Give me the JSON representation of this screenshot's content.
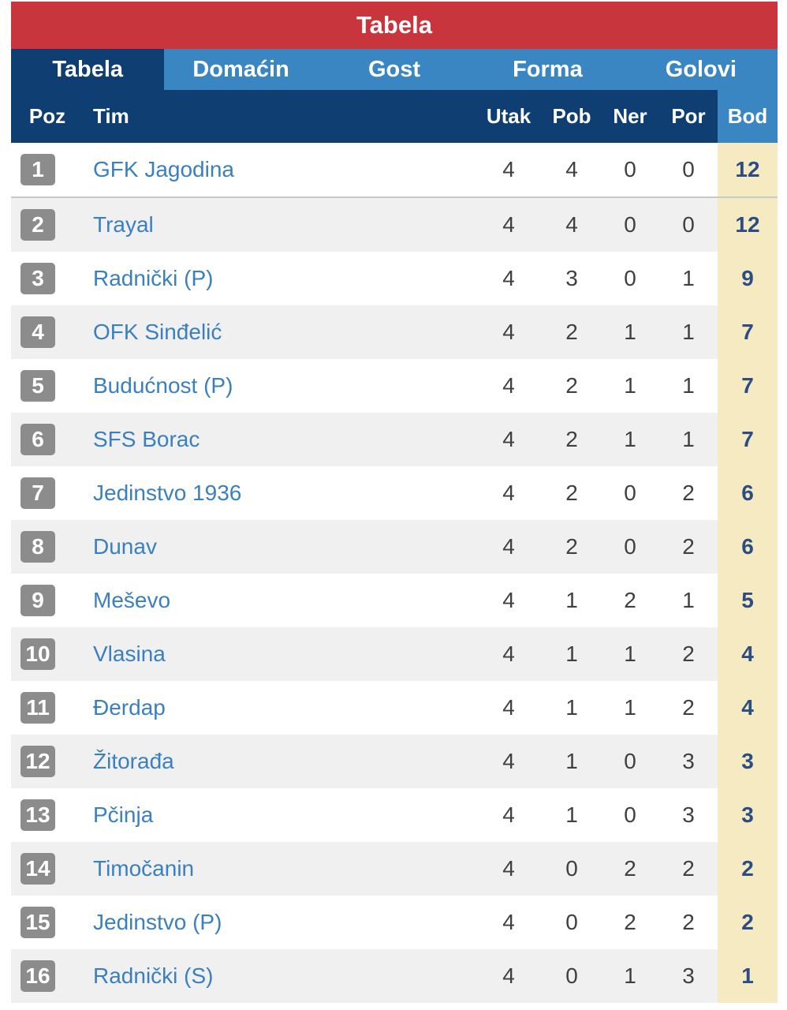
{
  "title": "Tabela",
  "tabs": [
    {
      "label": "Tabela",
      "active": true
    },
    {
      "label": "Domaćin",
      "active": false
    },
    {
      "label": "Gost",
      "active": false
    },
    {
      "label": "Forma",
      "active": false
    },
    {
      "label": "Golovi",
      "active": false
    }
  ],
  "columns": {
    "poz": "Poz",
    "tim": "Tim",
    "utak": "Utak",
    "pob": "Pob",
    "ner": "Ner",
    "por": "Por",
    "bod": "Bod"
  },
  "colors": {
    "title_bg": "#c8353d",
    "tab_bg": "#3a86c3",
    "header_bg": "#0f3e72",
    "badge_bg": "#8c8c8c",
    "points_bg": "#f6eac2",
    "team_link": "#3a80c0"
  },
  "rows": [
    {
      "pos": "1",
      "team": "GFK Jagodina",
      "utak": "4",
      "pob": "4",
      "ner": "0",
      "por": "0",
      "bod": "12"
    },
    {
      "pos": "2",
      "team": "Trayal",
      "utak": "4",
      "pob": "4",
      "ner": "0",
      "por": "0",
      "bod": "12"
    },
    {
      "pos": "3",
      "team": "Radnički (P)",
      "utak": "4",
      "pob": "3",
      "ner": "0",
      "por": "1",
      "bod": "9"
    },
    {
      "pos": "4",
      "team": "OFK Sinđelić",
      "utak": "4",
      "pob": "2",
      "ner": "1",
      "por": "1",
      "bod": "7"
    },
    {
      "pos": "5",
      "team": "Budućnost (P)",
      "utak": "4",
      "pob": "2",
      "ner": "1",
      "por": "1",
      "bod": "7"
    },
    {
      "pos": "6",
      "team": "SFS Borac",
      "utak": "4",
      "pob": "2",
      "ner": "1",
      "por": "1",
      "bod": "7"
    },
    {
      "pos": "7",
      "team": "Jedinstvo 1936",
      "utak": "4",
      "pob": "2",
      "ner": "0",
      "por": "2",
      "bod": "6"
    },
    {
      "pos": "8",
      "team": "Dunav",
      "utak": "4",
      "pob": "2",
      "ner": "0",
      "por": "2",
      "bod": "6"
    },
    {
      "pos": "9",
      "team": "Meševo",
      "utak": "4",
      "pob": "1",
      "ner": "2",
      "por": "1",
      "bod": "5"
    },
    {
      "pos": "10",
      "team": "Vlasina",
      "utak": "4",
      "pob": "1",
      "ner": "1",
      "por": "2",
      "bod": "4"
    },
    {
      "pos": "11",
      "team": "Đerdap",
      "utak": "4",
      "pob": "1",
      "ner": "1",
      "por": "2",
      "bod": "4"
    },
    {
      "pos": "12",
      "team": "Žitorađa",
      "utak": "4",
      "pob": "1",
      "ner": "0",
      "por": "3",
      "bod": "3"
    },
    {
      "pos": "13",
      "team": "Pčinja",
      "utak": "4",
      "pob": "1",
      "ner": "0",
      "por": "3",
      "bod": "3"
    },
    {
      "pos": "14",
      "team": "Timočanin",
      "utak": "4",
      "pob": "0",
      "ner": "2",
      "por": "2",
      "bod": "2"
    },
    {
      "pos": "15",
      "team": "Jedinstvo (P)",
      "utak": "4",
      "pob": "0",
      "ner": "2",
      "por": "2",
      "bod": "2"
    },
    {
      "pos": "16",
      "team": "Radnički (S)",
      "utak": "4",
      "pob": "0",
      "ner": "1",
      "por": "3",
      "bod": "1"
    }
  ]
}
